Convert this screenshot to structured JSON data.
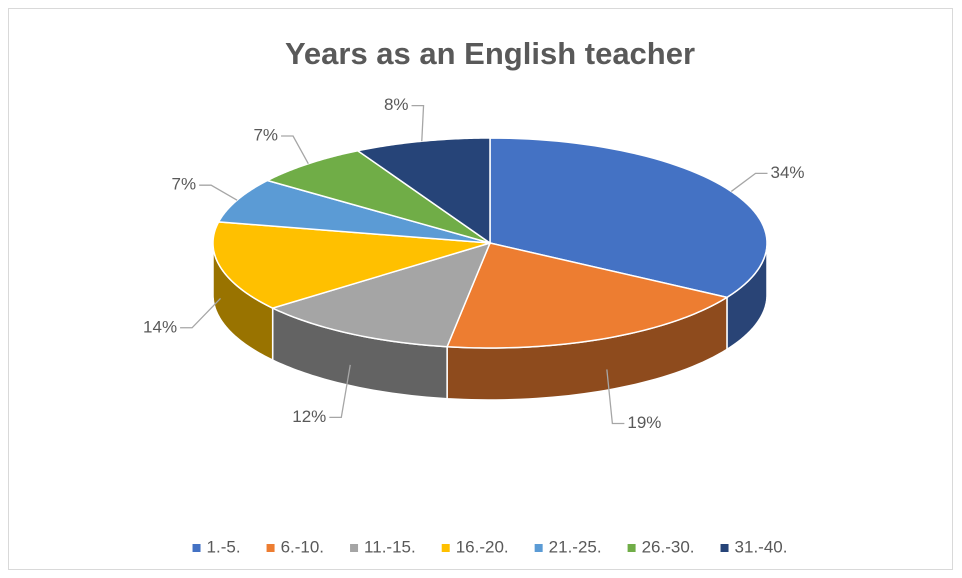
{
  "chart_data": {
    "type": "pie3d",
    "title": "Years as an English teacher",
    "categories": [
      "1.-5.",
      "6.-10.",
      "11.-15.",
      "16.-20.",
      "21.-25.",
      "26.-30.",
      "31.-40."
    ],
    "values": [
      34,
      19,
      12,
      14,
      7,
      7,
      8
    ],
    "value_labels": [
      "34%",
      "19%",
      "12%",
      "14%",
      "7%",
      "7%",
      "8%"
    ],
    "colors": [
      "#4472c4",
      "#ed7d31",
      "#a5a5a5",
      "#ffc000",
      "#5b9bd5",
      "#70ad47",
      "#264478"
    ],
    "legend": "bottom"
  }
}
